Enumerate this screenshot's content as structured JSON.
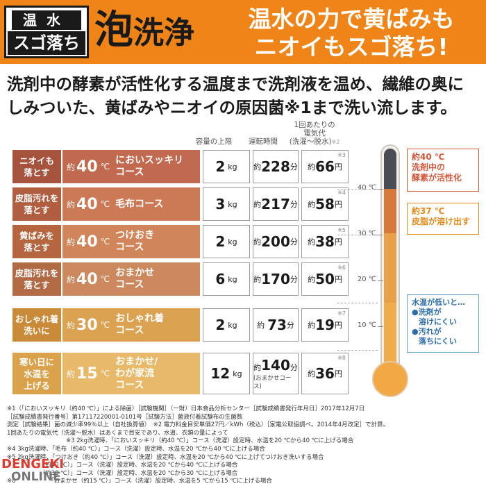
{
  "badge": {
    "top": "温水",
    "bottom": "スゴ落ち"
  },
  "logo": {
    "main": "泡",
    "rest": "洗浄"
  },
  "tagline": {
    "line1": "温水の力で黄ばみも",
    "line2": "ニオイもスゴ落ち!"
  },
  "lead": {
    "line1": "洗剤中の酵素が活性化する温度まで洗剤液を温め、繊維の奥に",
    "line2": "しみついた、黄ばみやニオイの原因菌※1まで洗い流します。"
  },
  "columns": {
    "capacity": "容量の上限",
    "time": "運転時間",
    "cost_line1": "1回あたりの",
    "cost_line2": "電気代",
    "cost_line3": "(洗濯〜脱水)",
    "cost_note": "※2"
  },
  "rows": [
    {
      "label_l1": "ニオイも",
      "label_l2": "落とす",
      "approx": "約",
      "temp": "40",
      "unit": "℃",
      "course_l1": "においスッキリ",
      "course_l2": "コース",
      "cap": "2",
      "cap_unit": "kg",
      "time_prefix": "約",
      "time": "228",
      "time_unit": "分",
      "time_sub": "",
      "cost_prefix": "約",
      "cost": "66",
      "cost_unit": "円",
      "note": "※3"
    },
    {
      "label_l1": "皮脂汚れを",
      "label_l2": "落とす",
      "approx": "約",
      "temp": "40",
      "unit": "℃",
      "course_l1": "毛布コース",
      "course_l2": "",
      "cap": "3",
      "cap_unit": "kg",
      "time_prefix": "約",
      "time": "217",
      "time_unit": "分",
      "time_sub": "",
      "cost_prefix": "約",
      "cost": "58",
      "cost_unit": "円",
      "note": "※4"
    },
    {
      "label_l1": "黄ばみを",
      "label_l2": "落とす",
      "approx": "約",
      "temp": "40",
      "unit": "℃",
      "course_l1": "つけおき",
      "course_l2": "コース",
      "cap": "2",
      "cap_unit": "kg",
      "time_prefix": "約",
      "time": "200",
      "time_unit": "分",
      "time_sub": "",
      "cost_prefix": "約",
      "cost": "38",
      "cost_unit": "円",
      "note": "※5"
    },
    {
      "label_l1": "皮脂汚れを",
      "label_l2": "落とす",
      "approx": "約",
      "temp": "40",
      "unit": "℃",
      "course_l1": "おまかせ",
      "course_l2": "コース",
      "cap": "6",
      "cap_unit": "kg",
      "time_prefix": "約",
      "time": "170",
      "time_unit": "分",
      "time_sub": "",
      "cost_prefix": "約",
      "cost": "50",
      "cost_unit": "円",
      "note": "※6"
    },
    {
      "label_l1": "おしゃれ着",
      "label_l2": "洗いに",
      "approx": "約",
      "temp": "30",
      "unit": "℃",
      "course_l1": "おしゃれ着",
      "course_l2": "コース",
      "cap": "2",
      "cap_unit": "kg",
      "time_prefix": "約",
      "time": "73",
      "time_unit": "分",
      "time_sub": "",
      "cost_prefix": "約",
      "cost": "19",
      "cost_unit": "円",
      "note": "※7"
    },
    {
      "label_l1": "寒い日に",
      "label_l2": "水温を",
      "label_l3": "上げる",
      "approx": "約",
      "temp": "15",
      "unit": "℃",
      "course_l1": "おまかせ/",
      "course_l2": "わが家流",
      "course_l3": "コース",
      "cap": "12",
      "cap_unit": "kg",
      "time_prefix": "約",
      "time": "140",
      "time_unit": "分",
      "time_sub": "(おまかせコース)",
      "cost_prefix": "約",
      "cost": "36",
      "cost_unit": "円",
      "note": "※8"
    }
  ],
  "thermometer": {
    "ticks": [
      "40 ℃",
      "30 ℃",
      "20 ℃",
      "10 ℃"
    ],
    "callout_40": {
      "l1": "約40 ℃",
      "l2": "洗剤中の",
      "l3": "酵素が活性化",
      "color": "#d2573a"
    },
    "callout_37": {
      "l1": "約37 ℃",
      "l2": "皮脂が溶け出す",
      "color": "#e38a1c"
    },
    "low": {
      "title": "水温が低いと…",
      "b1_l1": "●洗剤が",
      "b1_l2": "溶けにくい",
      "b2_l1": "●汚れが",
      "b2_l2": "落ちにくい"
    }
  },
  "footnotes": [
    "※1（「においスッキリ（約40 ℃）」による除菌）［試験機関］（一財）日本食品分析センター［試験成績書発行年月日］2017年12月7日",
    "［試験成績書発行番号］第17117220001-0101号［試験方法］菌液付着試験布の生菌数",
    "測定［試験結果］菌の減少率99％以上（自社換算値）　※2 電力料金目安単価27円／kWh（税込）［家電公取協調べ。2014年4月改定］で計算。",
    "1回あたりの電気代（洗濯〜脱水）はあくまで目安であり、水道、衣類の量によって",
    "　　　　　　　　　　※3 2kg洗濯時、「においスッキリ（約40 ℃）」コース（洗濯）設定時、水温を20 ℃から40 ℃に上げる場合",
    "※4 3kg洗濯時、「毛布（約40 ℃）」コース（洗濯）設定時、水温を20 ℃から40 ℃に上げる場合",
    "※5 2kg洗濯時、「つけおき（約40 ℃）」コース（洗濯）設定時、水温を20 ℃から40 ℃に上げてつけおき洗いする場合",
    "　　　　　　（約40 ℃）」コース（洗濯）設定時、水温を20 ℃から40 ℃に上げる場合",
    "　　　　　　（約30 ℃）」コース（洗濯）設定時、水温を20 ℃から30 ℃に上げる場合",
    "※8　　　　　　「おまかせ（約15 ℃）」コース（洗濯）設定時、水温を5 ℃から15 ℃に上げる場合"
  ],
  "watermark": {
    "l1": "DENGEKI",
    "l2": "ONLINE"
  }
}
